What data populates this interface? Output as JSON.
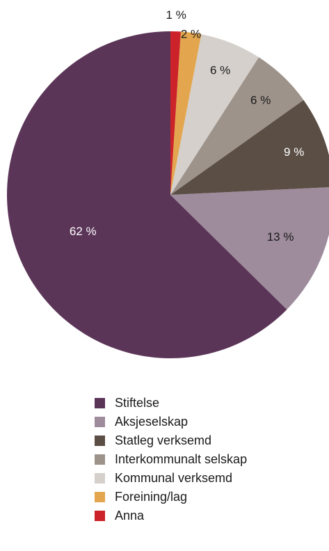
{
  "chart_data": {
    "type": "pie",
    "series": [
      {
        "name": "Stiftelse",
        "value": 62,
        "label": "62 %",
        "color": "#5b3558"
      },
      {
        "name": "Aksjeselskap",
        "value": 13,
        "label": "13 %",
        "color": "#9e8c9c"
      },
      {
        "name": "Statleg verksemd",
        "value": 9,
        "label": "9 %",
        "color": "#5b4e45"
      },
      {
        "name": "Interkommunalt selskap",
        "value": 6,
        "label": "6 %",
        "color": "#9d938b"
      },
      {
        "name": "Kommunal verksemd",
        "value": 6,
        "label": "6 %",
        "color": "#d5d0cc"
      },
      {
        "name": "Foreining/lag",
        "value": 2,
        "label": "2 %",
        "color": "#e3a64e"
      },
      {
        "name": "Anna",
        "value": 1,
        "label": "1 %",
        "color": "#cc2229"
      }
    ],
    "legend_position": "bottom"
  }
}
